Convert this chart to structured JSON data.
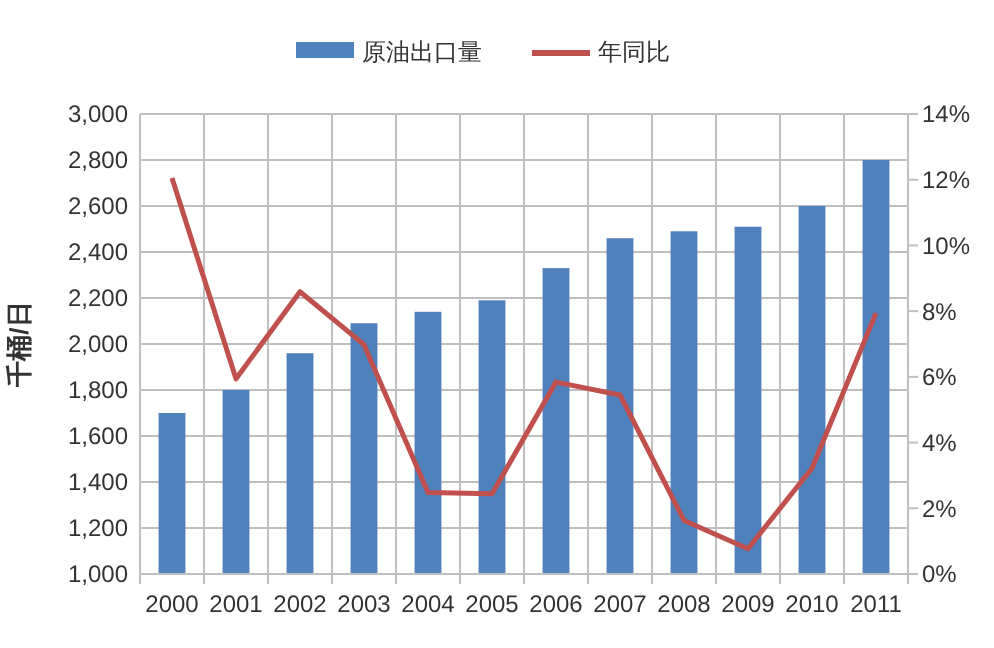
{
  "chart_data": {
    "type": "bar",
    "ylabel": "千桶/日",
    "categories": [
      "2000",
      "2001",
      "2002",
      "2003",
      "2004",
      "2005",
      "2006",
      "2007",
      "2008",
      "2009",
      "2010",
      "2011"
    ],
    "series": [
      {
        "name": "原油出口量",
        "color": "#4f81bd",
        "values": [
          1700,
          1800,
          1960,
          2090,
          2140,
          2190,
          2330,
          2460,
          2490,
          2510,
          2600,
          2800
        ]
      },
      {
        "name": "年同比",
        "type": "line",
        "axis": "y2",
        "color": "#c0504d",
        "values": [
          12.05,
          5.94,
          8.59,
          6.98,
          2.48,
          2.44,
          5.84,
          5.45,
          1.63,
          0.77,
          3.22,
          7.94
        ]
      }
    ],
    "ylim": [
      1000,
      3000
    ],
    "yticks": [
      {
        "value": 1000,
        "label": "1,000"
      },
      {
        "value": 1200,
        "label": "1,200"
      },
      {
        "value": 1400,
        "label": "1,400"
      },
      {
        "value": 1600,
        "label": "1,600"
      },
      {
        "value": 1800,
        "label": "1,800"
      },
      {
        "value": 2000,
        "label": "2,000"
      },
      {
        "value": 2200,
        "label": "2,200"
      },
      {
        "value": 2400,
        "label": "2,400"
      },
      {
        "value": 2600,
        "label": "2,600"
      },
      {
        "value": 2800,
        "label": "2,800"
      },
      {
        "value": 3000,
        "label": "3,000"
      }
    ],
    "y2lim": [
      0,
      14
    ],
    "y2ticks": [
      {
        "value": 0,
        "label": "0%"
      },
      {
        "value": 2,
        "label": "2%"
      },
      {
        "value": 4,
        "label": "4%"
      },
      {
        "value": 6,
        "label": "6%"
      },
      {
        "value": 8,
        "label": "8%"
      },
      {
        "value": 10,
        "label": "10%"
      },
      {
        "value": 12,
        "label": "12%"
      },
      {
        "value": 14,
        "label": "14%"
      }
    ],
    "grid": true,
    "legend": "top",
    "marker": "none",
    "line_style": "solid"
  }
}
